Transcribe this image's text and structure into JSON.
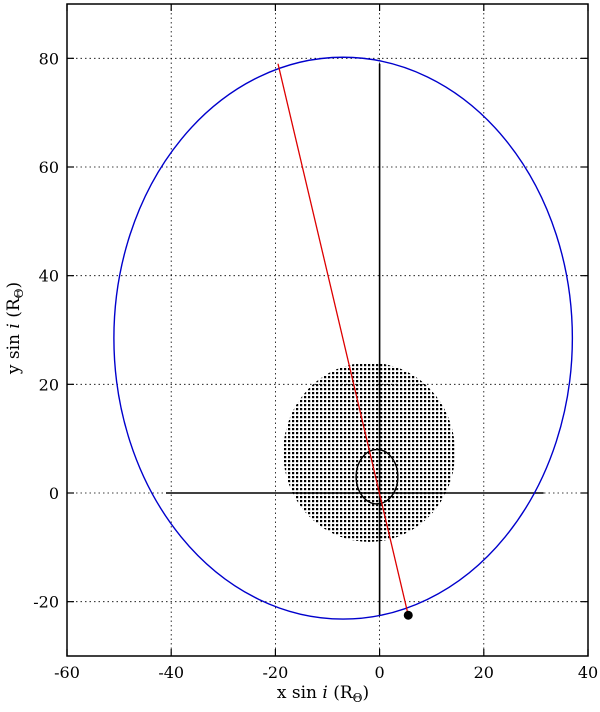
{
  "chart_data": {
    "type": "scatter",
    "xlabel": {
      "pre": "x sin ",
      "ital": "i",
      "post": " (R",
      "sub": "Θ",
      "close": ")"
    },
    "ylabel": {
      "pre": "y sin ",
      "ital": "i",
      "post": " (R",
      "sub": "Θ",
      "close": ")"
    },
    "xlim": [
      -60,
      40
    ],
    "ylim": [
      -30,
      90
    ],
    "xticks": [
      -60,
      -40,
      -20,
      0,
      20,
      40
    ],
    "yticks": [
      -20,
      0,
      20,
      40,
      60,
      80
    ],
    "grid": true,
    "orbit_ellipse": {
      "center": [
        -7,
        28.5
      ],
      "semi_axis_x": 44,
      "semi_axis_y": 51.7,
      "color": "#0000cc"
    },
    "periastron_line": {
      "from": [
        -19.5,
        79
      ],
      "to": [
        5.5,
        -22.5
      ],
      "color": "#dd0000"
    },
    "primary_star": {
      "center": [
        -2,
        7.5
      ],
      "radius": 16.5,
      "fill": "dotted"
    },
    "small_orbit": {
      "center": [
        -0.5,
        3
      ],
      "semi_axis_x": 4,
      "semi_axis_y": 5
    },
    "companion_point": [
      5.5,
      -22.5
    ],
    "axes_cross": {
      "x_from": -41,
      "x_to": 31.5,
      "y_from": -22.5,
      "y_to": 79
    }
  }
}
